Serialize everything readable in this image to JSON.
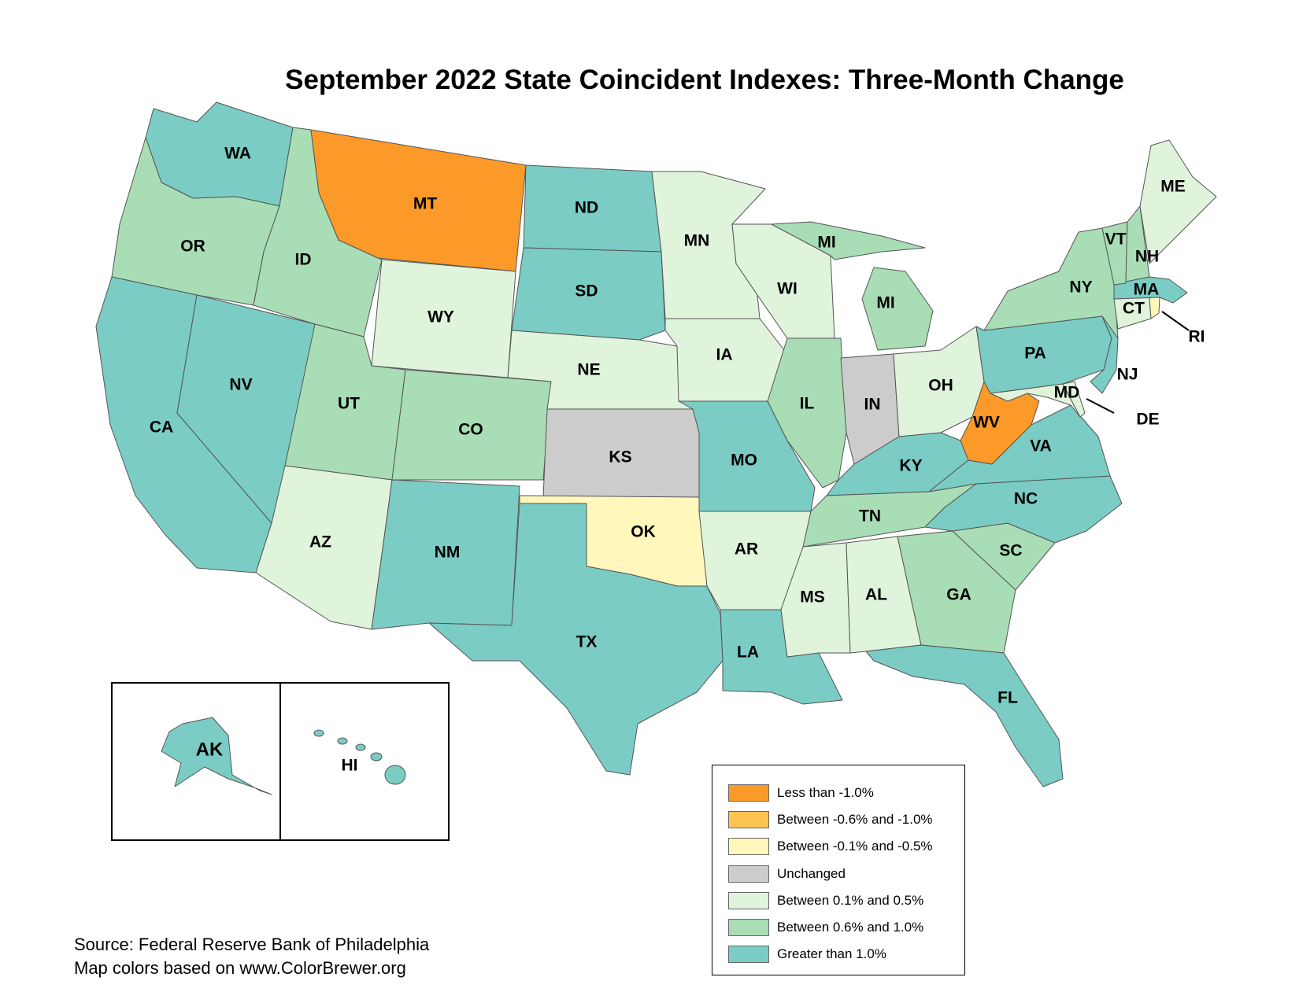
{
  "title": "September 2022 State Coincident Indexes: Three-Month Change",
  "source_line1": "Source: Federal Reserve Bank of Philadelphia",
  "source_line2": "Map colors based on www.ColorBrewer.org",
  "legend": [
    {
      "label": "Less than -1.0%",
      "color": "#fb9a29"
    },
    {
      "label": "Between -0.6% and -1.0%",
      "color": "#fec44f"
    },
    {
      "label": "Between -0.1% and -0.5%",
      "color": "#fff7bc"
    },
    {
      "label": "Unchanged",
      "color": "#cccccc"
    },
    {
      "label": "Between 0.1% and 0.5%",
      "color": "#e0f3db"
    },
    {
      "label": "Between 0.6% and 1.0%",
      "color": "#a8ddb5"
    },
    {
      "label": "Greater than 1.0%",
      "color": "#7bccc4"
    }
  ],
  "states": {
    "WA": {
      "label": "WA",
      "cls": 6
    },
    "OR": {
      "label": "OR",
      "cls": 5
    },
    "CA": {
      "label": "CA",
      "cls": 6
    },
    "NV": {
      "label": "NV",
      "cls": 6
    },
    "ID": {
      "label": "ID",
      "cls": 5
    },
    "MT": {
      "label": "MT",
      "cls": 0
    },
    "WY": {
      "label": "WY",
      "cls": 4
    },
    "UT": {
      "label": "UT",
      "cls": 5
    },
    "CO": {
      "label": "CO",
      "cls": 5
    },
    "AZ": {
      "label": "AZ",
      "cls": 4
    },
    "NM": {
      "label": "NM",
      "cls": 6
    },
    "ND": {
      "label": "ND",
      "cls": 6
    },
    "SD": {
      "label": "SD",
      "cls": 6
    },
    "NE": {
      "label": "NE",
      "cls": 4
    },
    "KS": {
      "label": "KS",
      "cls": 3
    },
    "OK": {
      "label": "OK",
      "cls": 2
    },
    "TX": {
      "label": "TX",
      "cls": 6
    },
    "MN": {
      "label": "MN",
      "cls": 4
    },
    "IA": {
      "label": "IA",
      "cls": 4
    },
    "MO": {
      "label": "MO",
      "cls": 6
    },
    "AR": {
      "label": "AR",
      "cls": 4
    },
    "LA": {
      "label": "LA",
      "cls": 6
    },
    "WI": {
      "label": "WI",
      "cls": 4
    },
    "IL": {
      "label": "IL",
      "cls": 5
    },
    "MI": {
      "label": "MI",
      "cls": 5
    },
    "IN": {
      "label": "IN",
      "cls": 3
    },
    "OH": {
      "label": "OH",
      "cls": 4
    },
    "KY": {
      "label": "KY",
      "cls": 6
    },
    "TN": {
      "label": "TN",
      "cls": 5
    },
    "MS": {
      "label": "MS",
      "cls": 4
    },
    "AL": {
      "label": "AL",
      "cls": 4
    },
    "GA": {
      "label": "GA",
      "cls": 5
    },
    "FL": {
      "label": "FL",
      "cls": 6
    },
    "SC": {
      "label": "SC",
      "cls": 5
    },
    "NC": {
      "label": "NC",
      "cls": 6
    },
    "VA": {
      "label": "VA",
      "cls": 6
    },
    "WV": {
      "label": "WV",
      "cls": 0
    },
    "MD": {
      "label": "MD",
      "cls": 4
    },
    "DE": {
      "label": "DE",
      "cls": 4
    },
    "PA": {
      "label": "PA",
      "cls": 6
    },
    "NJ": {
      "label": "NJ",
      "cls": 6
    },
    "NY": {
      "label": "NY",
      "cls": 5
    },
    "CT": {
      "label": "CT",
      "cls": 4
    },
    "RI": {
      "label": "RI",
      "cls": 2
    },
    "MA": {
      "label": "MA",
      "cls": 6
    },
    "VT": {
      "label": "VT",
      "cls": 5
    },
    "NH": {
      "label": "NH",
      "cls": 5
    },
    "ME": {
      "label": "ME",
      "cls": 4
    },
    "AK": {
      "label": "AK",
      "cls": 6
    },
    "HI": {
      "label": "HI",
      "cls": 6
    }
  }
}
